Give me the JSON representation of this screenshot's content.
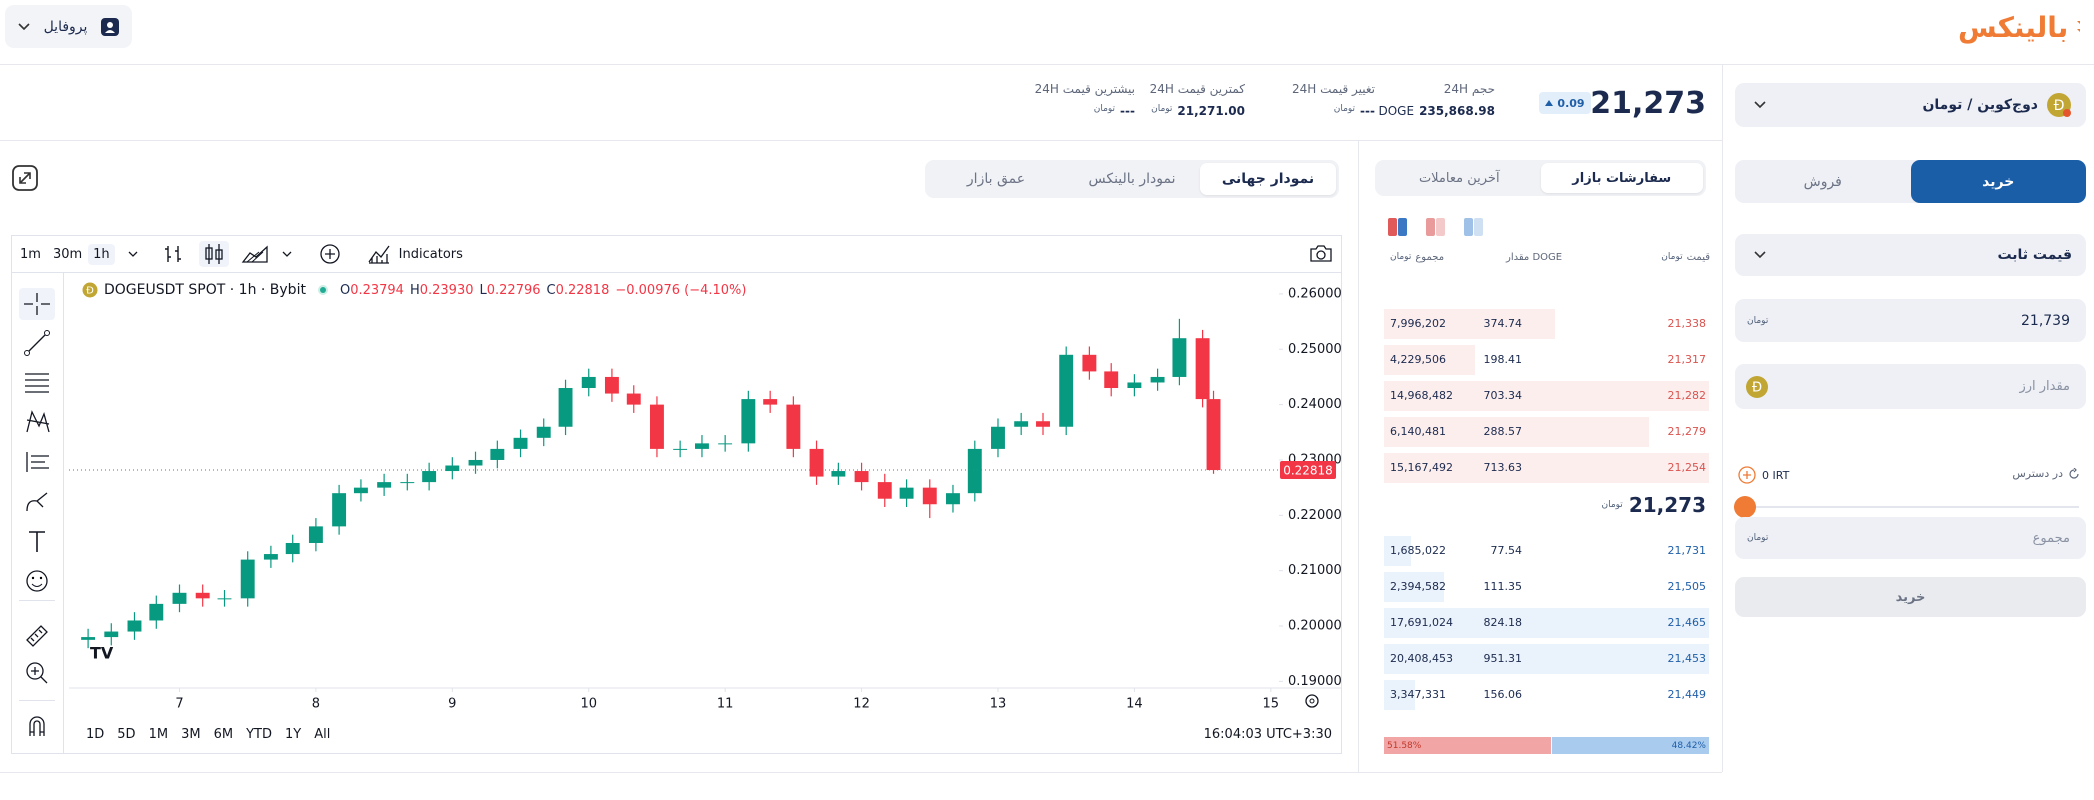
{
  "header": {
    "logo": "بالینکس",
    "profile": "پروفایل"
  },
  "currency_unit": "تومان",
  "market": {
    "price": "21,273",
    "change": "0.09",
    "stats": [
      {
        "label": "حجم 24H",
        "unit": "DOGE",
        "value": "235,868.98"
      },
      {
        "label": "تغییر قیمت 24H",
        "value": "---"
      },
      {
        "label": "کمترین قیمت 24H",
        "value": "21,271.00"
      },
      {
        "label": "بیشترین قیمت 24H",
        "value": "---"
      }
    ]
  },
  "chart_tabs": [
    "نمودار جهانی",
    "نمودار بالینکس",
    "عمق بازار"
  ],
  "toolbar": {
    "intervals": [
      "1m",
      "30m",
      "1h"
    ],
    "indicators": "Indicators"
  },
  "ranges": [
    "1D",
    "5D",
    "1M",
    "3M",
    "6M",
    "YTD",
    "1Y",
    "All"
  ],
  "time": "16:04:03 UTC+3:30",
  "chart_data": {
    "type": "candlestick",
    "title": "DOGEUSDT SPOT · 1h · Bybit",
    "ohlc": [
      {
        "label": "O",
        "value": "0.23794"
      },
      {
        "label": "H",
        "value": "0.23930"
      },
      {
        "label": "L",
        "value": "0.22796"
      },
      {
        "label": "C",
        "value": "0.22818"
      }
    ],
    "change": "−0.00976 (−4.10%)",
    "colors": {
      "up": "#089981",
      "down": "#f23645"
    },
    "x": [
      6.33,
      6.5,
      6.67,
      6.83,
      7,
      7.17,
      7.33,
      7.5,
      7.67,
      7.83,
      8,
      8.17,
      8.33,
      8.5,
      8.67,
      8.83,
      9,
      9.17,
      9.33,
      9.5,
      9.67,
      9.83,
      10,
      10.17,
      10.33,
      10.5,
      10.67,
      10.83,
      11,
      11.17,
      11.33,
      11.5,
      11.67,
      11.83,
      12,
      12.17,
      12.33,
      12.5,
      12.67,
      12.83,
      13,
      13.17,
      13.33,
      13.5,
      13.67,
      13.83,
      14,
      14.17,
      14.33,
      14.5,
      14.58
    ],
    "open": [
      0.1975,
      0.198,
      0.199,
      0.201,
      0.204,
      0.206,
      0.205,
      0.205,
      0.212,
      0.213,
      0.215,
      0.218,
      0.224,
      0.225,
      0.226,
      0.226,
      0.228,
      0.229,
      0.23,
      0.232,
      0.234,
      0.236,
      0.243,
      0.245,
      0.242,
      0.24,
      0.232,
      0.232,
      0.233,
      0.233,
      0.241,
      0.24,
      0.232,
      0.227,
      0.228,
      0.226,
      0.223,
      0.225,
      0.222,
      0.224,
      0.232,
      0.236,
      0.237,
      0.236,
      0.249,
      0.246,
      0.243,
      0.244,
      0.245,
      0.252,
      0.241
    ],
    "high": [
      0.1995,
      0.2005,
      0.2025,
      0.2055,
      0.2075,
      0.2075,
      0.2065,
      0.2135,
      0.2145,
      0.2165,
      0.2195,
      0.2255,
      0.2265,
      0.2275,
      0.2275,
      0.2295,
      0.2305,
      0.2315,
      0.2335,
      0.2355,
      0.2375,
      0.2445,
      0.2465,
      0.2465,
      0.2435,
      0.2415,
      0.2335,
      0.2345,
      0.2345,
      0.2425,
      0.2425,
      0.2415,
      0.2335,
      0.2295,
      0.2295,
      0.2275,
      0.2265,
      0.2265,
      0.2255,
      0.2335,
      0.2375,
      0.2385,
      0.2385,
      0.2505,
      0.2505,
      0.2475,
      0.2455,
      0.2465,
      0.2555,
      0.2535,
      0.2425
    ],
    "low": [
      0.196,
      0.1965,
      0.1975,
      0.1995,
      0.2025,
      0.2035,
      0.2035,
      0.2035,
      0.2105,
      0.2115,
      0.2135,
      0.2165,
      0.2225,
      0.2235,
      0.2245,
      0.2245,
      0.2265,
      0.2275,
      0.2285,
      0.2305,
      0.2325,
      0.2345,
      0.2415,
      0.2405,
      0.2385,
      0.2305,
      0.2305,
      0.2305,
      0.2315,
      0.2315,
      0.2385,
      0.2305,
      0.2255,
      0.2255,
      0.2245,
      0.2215,
      0.2215,
      0.2195,
      0.2205,
      0.2225,
      0.2305,
      0.2345,
      0.2345,
      0.2345,
      0.2445,
      0.2415,
      0.2415,
      0.2425,
      0.2435,
      0.2395,
      0.2275
    ],
    "close": [
      0.198,
      0.199,
      0.201,
      0.204,
      0.206,
      0.205,
      0.205,
      0.212,
      0.213,
      0.215,
      0.218,
      0.224,
      0.225,
      0.226,
      0.226,
      0.228,
      0.229,
      0.23,
      0.232,
      0.234,
      0.236,
      0.243,
      0.245,
      0.242,
      0.24,
      0.232,
      0.232,
      0.233,
      0.233,
      0.241,
      0.24,
      0.232,
      0.227,
      0.228,
      0.226,
      0.223,
      0.225,
      0.222,
      0.224,
      0.232,
      0.236,
      0.237,
      0.236,
      0.249,
      0.246,
      0.243,
      0.244,
      0.245,
      0.252,
      0.241,
      0.22818
    ],
    "last_price": 0.22818,
    "xlim": [
      6.19,
      15.06
    ],
    "xticks": [
      7,
      8,
      9,
      10,
      11,
      12,
      13,
      14,
      15
    ],
    "ylim": [
      0.1888,
      0.2636
    ],
    "yticks": [
      {
        "value": 0.19,
        "label": "0.19000"
      },
      {
        "value": 0.2,
        "label": "0.20000"
      },
      {
        "value": 0.21,
        "label": "0.21000"
      },
      {
        "value": 0.22,
        "label": "0.22000"
      },
      {
        "value": 0.23,
        "label": "0.23000"
      },
      {
        "value": 0.24,
        "label": "0.24000"
      },
      {
        "value": 0.25,
        "label": "0.25000"
      },
      {
        "value": 0.26,
        "label": "0.26000"
      }
    ],
    "grid": false
  },
  "order_book": {
    "tabs": [
      "سفارشات بازار",
      "آخرین معاملات"
    ],
    "headers": {
      "price": "قیمت",
      "amount": "مقدار DOGE",
      "total": "مجموع"
    },
    "asks": [
      [
        "21,338",
        "374.74",
        "7,996,202"
      ],
      [
        "21,317",
        "198.41",
        "4,229,506"
      ],
      [
        "21,282",
        "703.34",
        "14,968,482"
      ],
      [
        "21,279",
        "288.57",
        "6,140,481"
      ],
      [
        "21,254",
        "713.63",
        "15,167,492"
      ]
    ],
    "mid_price": "21,273",
    "bids": [
      [
        "21,731",
        "77.54",
        "1,685,022"
      ],
      [
        "21,505",
        "111.35",
        "2,394,582"
      ],
      [
        "21,465",
        "824.18",
        "17,691,024"
      ],
      [
        "21,453",
        "951.31",
        "20,408,453"
      ],
      [
        "21,449",
        "156.06",
        "3,347,331"
      ]
    ],
    "ratio": {
      "values": [
        51.58,
        48.42
      ],
      "value_labels": [
        "51.58%",
        "48.42%"
      ]
    }
  },
  "order_form": {
    "pair": "دوج‌کوین / تومان",
    "buy": "خرید",
    "sell": "فروش",
    "order_type": "قیمت ثابت",
    "price": "21,739",
    "amount_placeholder": "مقدار ارز",
    "available_label": "در دسترس",
    "available_value": "0 IRT",
    "slider_min": "0",
    "slider_max": "100",
    "total_placeholder": "مجموع",
    "submit": "خرید"
  }
}
